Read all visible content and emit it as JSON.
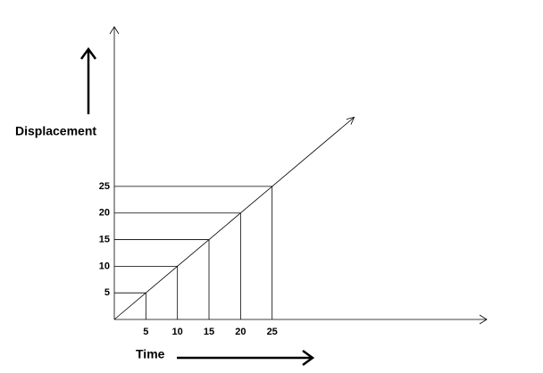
{
  "chart_data": {
    "type": "line",
    "x_label": "Time",
    "y_label": "Displacement",
    "x": [
      0,
      5,
      10,
      15,
      20,
      25,
      38
    ],
    "values": [
      0,
      5,
      10,
      15,
      20,
      25,
      38
    ],
    "color": "#000000",
    "xlim": [
      0,
      59
    ],
    "ylim": [
      0,
      55
    ],
    "xticks": [
      5,
      10,
      15,
      20,
      25
    ],
    "yticks": [
      5,
      10,
      15,
      20,
      25
    ],
    "grid": true
  }
}
